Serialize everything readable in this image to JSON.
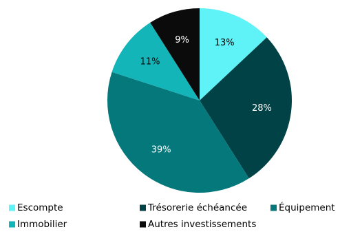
{
  "chart_data": {
    "type": "pie",
    "start_angle": "12 o'clock",
    "direction": "clockwise",
    "legend_position": "bottom",
    "slices": [
      {
        "name": "Escompte",
        "value": 13,
        "label": "13%",
        "color": "#5ff3f7",
        "label_color": "#000000"
      },
      {
        "name": "Trésorerie échéancée",
        "value": 28,
        "label": "28%",
        "color": "#004245",
        "label_color": "#ffffff"
      },
      {
        "name": "Équipement",
        "value": 39,
        "label": "39%",
        "color": "#05787b",
        "label_color": "#ffffff"
      },
      {
        "name": "Immobilier",
        "value": 11,
        "label": "11%",
        "color": "#14b5b9",
        "label_color": "#000000"
      },
      {
        "name": "Autres investissements",
        "value": 9,
        "label": "9%",
        "color": "#0b0b0b",
        "label_color": "#ffffff"
      }
    ]
  }
}
